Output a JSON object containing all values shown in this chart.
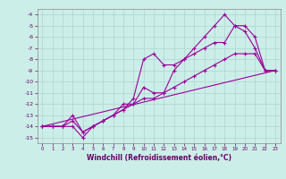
{
  "xlabel": "Windchill (Refroidissement éolien,°C)",
  "background_color": "#cceee8",
  "line_color": "#990099",
  "grid_color": "#aacccc",
  "xlim": [
    -0.5,
    23.5
  ],
  "ylim": [
    -15.5,
    -3.5
  ],
  "yticks": [
    -15,
    -14,
    -13,
    -12,
    -11,
    -10,
    -9,
    -8,
    -7,
    -6,
    -5,
    -4
  ],
  "xticks": [
    0,
    1,
    2,
    3,
    4,
    5,
    6,
    7,
    8,
    9,
    10,
    11,
    12,
    13,
    14,
    15,
    16,
    17,
    18,
    19,
    20,
    21,
    22,
    23
  ],
  "lines": [
    {
      "x": [
        0,
        1,
        2,
        3,
        4,
        5,
        6,
        7,
        8,
        9,
        10,
        11,
        12,
        13,
        14,
        15,
        16,
        17,
        18,
        19,
        20,
        21,
        22,
        23
      ],
      "y": [
        -14,
        -14,
        -14,
        -14,
        -15,
        -14,
        -13.5,
        -13,
        -12.5,
        -12,
        -11.5,
        -11.5,
        -11,
        -10.5,
        -10,
        -9.5,
        -9,
        -8.5,
        -8,
        -7.5,
        -7.5,
        -7.5,
        -9,
        -9
      ]
    },
    {
      "x": [
        0,
        1,
        2,
        3,
        4,
        5,
        6,
        7,
        8,
        9,
        10,
        11,
        12,
        13,
        14,
        15,
        16,
        17,
        18,
        19,
        20,
        21,
        22,
        23
      ],
      "y": [
        -14,
        -14,
        -14,
        -13.5,
        -14.5,
        -14,
        -13.5,
        -13,
        -12.5,
        -11.5,
        -8,
        -7.5,
        -8.5,
        -8.5,
        -8,
        -7.5,
        -7,
        -6.5,
        -6.5,
        -5,
        -5,
        -6,
        -9,
        -9
      ]
    },
    {
      "x": [
        0,
        1,
        2,
        3,
        4,
        5,
        6,
        7,
        8,
        9,
        10,
        11,
        12,
        13,
        14,
        15,
        16,
        17,
        18,
        19,
        20,
        21,
        22,
        23
      ],
      "y": [
        -14,
        -14,
        -14,
        -13,
        -14.5,
        -14,
        -13.5,
        -13,
        -12,
        -12,
        -10.5,
        -11,
        -11,
        -9,
        -8,
        -7,
        -6,
        -5,
        -4,
        -5,
        -5.5,
        -7,
        -9,
        -9
      ]
    },
    {
      "x": [
        0,
        23
      ],
      "y": [
        -14,
        -9
      ]
    }
  ]
}
